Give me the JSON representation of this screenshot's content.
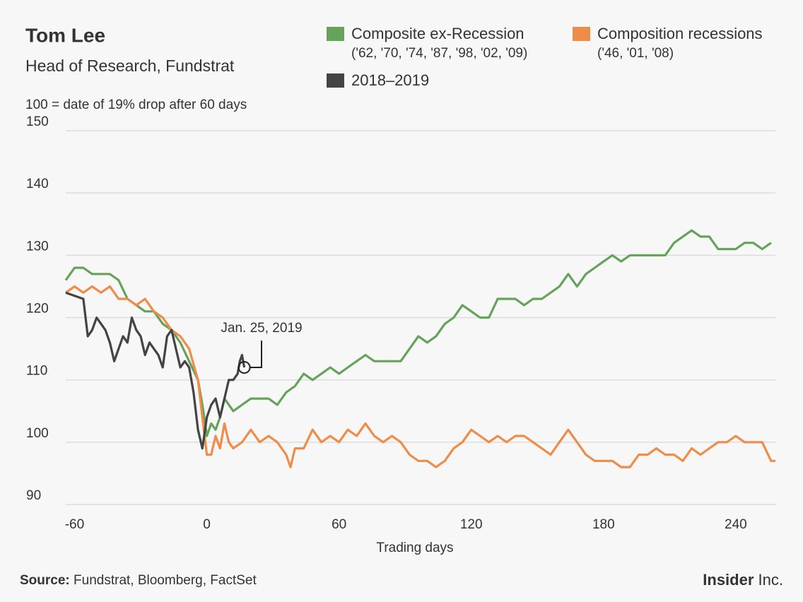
{
  "chart_data": {
    "type": "line",
    "title": "Tom Lee",
    "subtitle": "Head of Research, Fundstrat",
    "note": "100 = date of 19% drop after 60 days",
    "x_label": "Trading days",
    "source_label": "Source:",
    "source": "Fundstrat, Bloomberg, FactSet",
    "brand": "Insider",
    "brand_suffix": "Inc.",
    "annotation": {
      "text": "Jan. 25, 2019",
      "x": 17,
      "y": 112
    },
    "xlim": [
      -64,
      258
    ],
    "ylim": [
      90,
      150
    ],
    "xticks": [
      -60,
      0,
      60,
      120,
      180,
      240
    ],
    "yticks": [
      90,
      100,
      110,
      120,
      130,
      140,
      150
    ],
    "grid": true,
    "series": [
      {
        "name": "Composite ex-Recession",
        "note": "('62, '70, '74, '87, '98, '02, '09)",
        "color": "#66a35a",
        "x": [
          -64,
          -62,
          -60,
          -56,
          -52,
          -48,
          -44,
          -40,
          -36,
          -32,
          -28,
          -24,
          -20,
          -16,
          -12,
          -8,
          -4,
          -2,
          0,
          2,
          4,
          6,
          8,
          12,
          16,
          20,
          24,
          28,
          32,
          36,
          40,
          44,
          48,
          52,
          56,
          60,
          64,
          68,
          72,
          76,
          80,
          84,
          88,
          92,
          96,
          100,
          104,
          108,
          112,
          116,
          120,
          124,
          128,
          132,
          136,
          140,
          144,
          148,
          152,
          156,
          160,
          164,
          168,
          172,
          176,
          180,
          184,
          188,
          192,
          196,
          200,
          204,
          208,
          212,
          216,
          220,
          224,
          228,
          232,
          236,
          240,
          244,
          248,
          252,
          256
        ],
        "values": [
          126,
          127,
          128,
          128,
          127,
          127,
          127,
          126,
          123,
          122,
          121,
          121,
          119,
          118,
          116,
          113,
          110,
          106,
          101,
          103,
          102,
          104,
          107,
          105,
          106,
          107,
          107,
          107,
          106,
          108,
          109,
          111,
          110,
          111,
          112,
          111,
          112,
          113,
          114,
          113,
          113,
          113,
          113,
          115,
          117,
          116,
          117,
          119,
          120,
          122,
          121,
          120,
          120,
          123,
          123,
          123,
          122,
          123,
          123,
          124,
          125,
          127,
          125,
          127,
          128,
          129,
          130,
          129,
          130,
          130,
          130,
          130,
          130,
          132,
          133,
          134,
          133,
          133,
          131,
          131,
          131,
          132,
          132,
          131,
          132
        ]
      },
      {
        "name": "Composition recessions",
        "note": "('46, '01, '08)",
        "color": "#ef8c47",
        "x": [
          -64,
          -60,
          -56,
          -52,
          -48,
          -44,
          -40,
          -36,
          -32,
          -28,
          -24,
          -20,
          -16,
          -12,
          -8,
          -4,
          -2,
          0,
          2,
          4,
          6,
          8,
          10,
          12,
          16,
          20,
          24,
          28,
          32,
          36,
          38,
          40,
          44,
          48,
          52,
          56,
          60,
          64,
          68,
          72,
          76,
          80,
          84,
          88,
          92,
          96,
          100,
          104,
          108,
          112,
          116,
          120,
          124,
          128,
          132,
          136,
          140,
          144,
          148,
          152,
          156,
          160,
          164,
          168,
          172,
          176,
          180,
          184,
          188,
          192,
          196,
          200,
          204,
          208,
          212,
          216,
          220,
          224,
          228,
          232,
          236,
          240,
          244,
          248,
          252,
          256,
          258
        ],
        "values": [
          124,
          125,
          124,
          125,
          124,
          125,
          123,
          123,
          122,
          123,
          121,
          120,
          118,
          117,
          115,
          110,
          104,
          98,
          98,
          101,
          99,
          103,
          100,
          99,
          100,
          102,
          100,
          101,
          100,
          98,
          96,
          99,
          99,
          102,
          100,
          101,
          100,
          102,
          101,
          103,
          101,
          100,
          101,
          100,
          98,
          97,
          97,
          96,
          97,
          99,
          100,
          102,
          101,
          100,
          101,
          100,
          101,
          101,
          100,
          99,
          98,
          100,
          102,
          100,
          98,
          97,
          97,
          97,
          96,
          96,
          98,
          98,
          99,
          98,
          98,
          97,
          99,
          98,
          99,
          100,
          100,
          101,
          100,
          100,
          100,
          97,
          97
        ]
      },
      {
        "name": "2018–2019",
        "color": "#444444",
        "x": [
          -64,
          -56,
          -54,
          -52,
          -50,
          -48,
          -46,
          -44,
          -42,
          -40,
          -38,
          -36,
          -34,
          -32,
          -30,
          -28,
          -26,
          -24,
          -22,
          -20,
          -18,
          -16,
          -14,
          -12,
          -10,
          -8,
          -6,
          -4,
          -2,
          0,
          2,
          4,
          6,
          8,
          10,
          12,
          14,
          15,
          16,
          17
        ],
        "values": [
          124,
          123,
          117,
          118,
          120,
          119,
          118,
          116,
          113,
          115,
          117,
          116,
          120,
          118,
          117,
          114,
          116,
          115,
          114,
          112,
          117,
          118,
          115,
          112,
          113,
          112,
          108,
          102,
          99,
          104,
          106,
          107,
          104,
          107,
          110,
          110,
          111,
          113,
          114,
          112
        ]
      }
    ]
  }
}
